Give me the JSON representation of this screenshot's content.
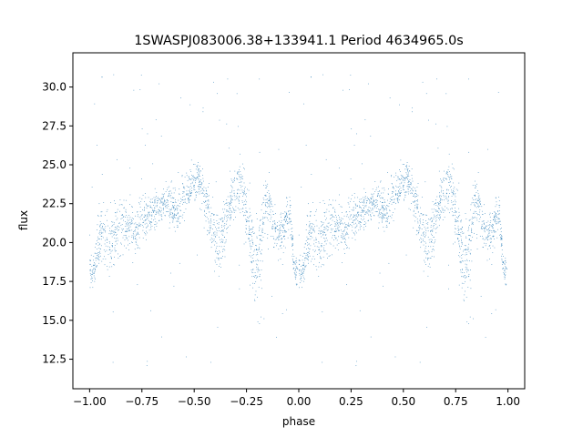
{
  "chart_data": {
    "type": "scatter",
    "title": "1SWASPJ083006.38+133941.1 Period 4634965.0s",
    "xlabel": "phase",
    "ylabel": "flux",
    "xlim": [
      -1.08,
      1.08
    ],
    "ylim": [
      10.6,
      32.2
    ],
    "xticks": [
      -1.0,
      -0.75,
      -0.5,
      -0.25,
      0.0,
      0.25,
      0.5,
      0.75,
      1.0
    ],
    "xtick_labels": [
      "−1.00",
      "−0.75",
      "−0.50",
      "−0.25",
      "0.00",
      "0.25",
      "0.50",
      "0.75",
      "1.00"
    ],
    "yticks": [
      12.5,
      15.0,
      17.5,
      20.0,
      22.5,
      25.0,
      27.5,
      30.0
    ],
    "ytick_labels": [
      "12.5",
      "15.0",
      "17.5",
      "20.0",
      "22.5",
      "25.0",
      "27.5",
      "30.0"
    ],
    "grid": false,
    "marker_color": "#1f77b4",
    "series_profile": {
      "x": [
        0.0,
        0.02,
        0.04,
        0.06,
        0.08,
        0.1,
        0.12,
        0.14,
        0.16,
        0.18,
        0.2,
        0.22,
        0.24,
        0.26,
        0.28,
        0.3,
        0.32,
        0.34,
        0.36,
        0.38,
        0.4,
        0.42,
        0.44,
        0.46,
        0.48,
        0.5,
        0.52,
        0.54,
        0.56,
        0.58,
        0.6,
        0.62,
        0.64,
        0.66,
        0.68,
        0.7,
        0.72,
        0.74,
        0.76,
        0.78,
        0.8,
        0.82,
        0.84,
        0.86,
        0.88,
        0.9,
        0.92,
        0.94,
        0.96,
        0.98
      ],
      "y": [
        18.4,
        18.2,
        19.8,
        20.6,
        20.2,
        19.8,
        20.6,
        21.0,
        21.4,
        21.0,
        21.2,
        20.6,
        21.4,
        21.6,
        21.8,
        22.0,
        22.2,
        22.4,
        22.6,
        22.4,
        22.2,
        22.0,
        22.6,
        22.8,
        23.4,
        24.0,
        24.2,
        23.6,
        22.4,
        21.2,
        20.4,
        19.8,
        20.6,
        22.0,
        22.8,
        23.4,
        23.8,
        22.6,
        21.2,
        19.2,
        18.6,
        20.4,
        22.2,
        22.6,
        21.0,
        20.4,
        20.8,
        21.4,
        21.8,
        18.2
      ],
      "spread": [
        1.2,
        0.8,
        1.6,
        1.8,
        2.0,
        2.0,
        1.8,
        1.6,
        1.6,
        1.4,
        1.4,
        1.4,
        1.4,
        1.2,
        1.2,
        1.0,
        1.0,
        1.0,
        1.0,
        1.2,
        1.2,
        1.4,
        1.4,
        1.2,
        1.0,
        1.0,
        1.0,
        1.2,
        1.4,
        1.6,
        1.8,
        1.8,
        1.8,
        1.6,
        1.6,
        1.4,
        1.4,
        1.8,
        2.0,
        2.2,
        2.4,
        2.2,
        1.4,
        1.2,
        1.2,
        1.2,
        1.2,
        1.2,
        0.8,
        0.8
      ]
    },
    "outlier_range": [
      11.6,
      31.0
    ],
    "points_per_cycle": 1800,
    "seed": 83006
  }
}
